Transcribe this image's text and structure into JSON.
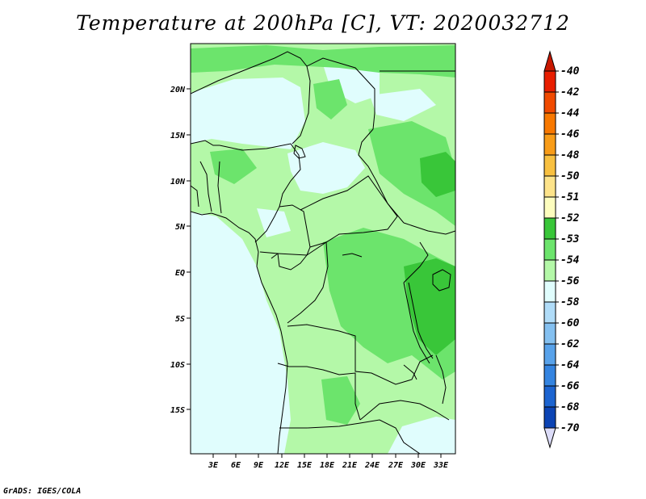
{
  "title": "Temperature at 200hPa [C], VT: 2020032712",
  "credit": "GrADS: IGES/COLA",
  "map": {
    "lat_ticks": [
      "20N",
      "15N",
      "10N",
      "5N",
      "EQ",
      "5S",
      "10S",
      "15S"
    ],
    "lon_ticks": [
      "3E",
      "6E",
      "9E",
      "12E",
      "15E",
      "18E",
      "21E",
      "24E",
      "27E",
      "30E",
      "33E"
    ]
  },
  "legend": {
    "labels": [
      "-40",
      "-42",
      "-44",
      "-46",
      "-48",
      "-50",
      "-51",
      "-52",
      "-53",
      "-54",
      "-56",
      "-58",
      "-60",
      "-62",
      "-64",
      "-66",
      "-68",
      "-70"
    ],
    "colors": [
      "#e81e00",
      "#f04a00",
      "#f87800",
      "#f89c18",
      "#f8c040",
      "#fde38a",
      "#fdfdbe",
      "#39c639",
      "#6ce46c",
      "#b4f8a8",
      "#e0fdfd",
      "#b0dcf8",
      "#84c0f0",
      "#58a2ea",
      "#3484e0",
      "#1c64d0",
      "#0c44b4",
      "#080878"
    ],
    "top_arrow_color": "#c81800",
    "bottom_arrow_color": "#dcdcf8"
  }
}
